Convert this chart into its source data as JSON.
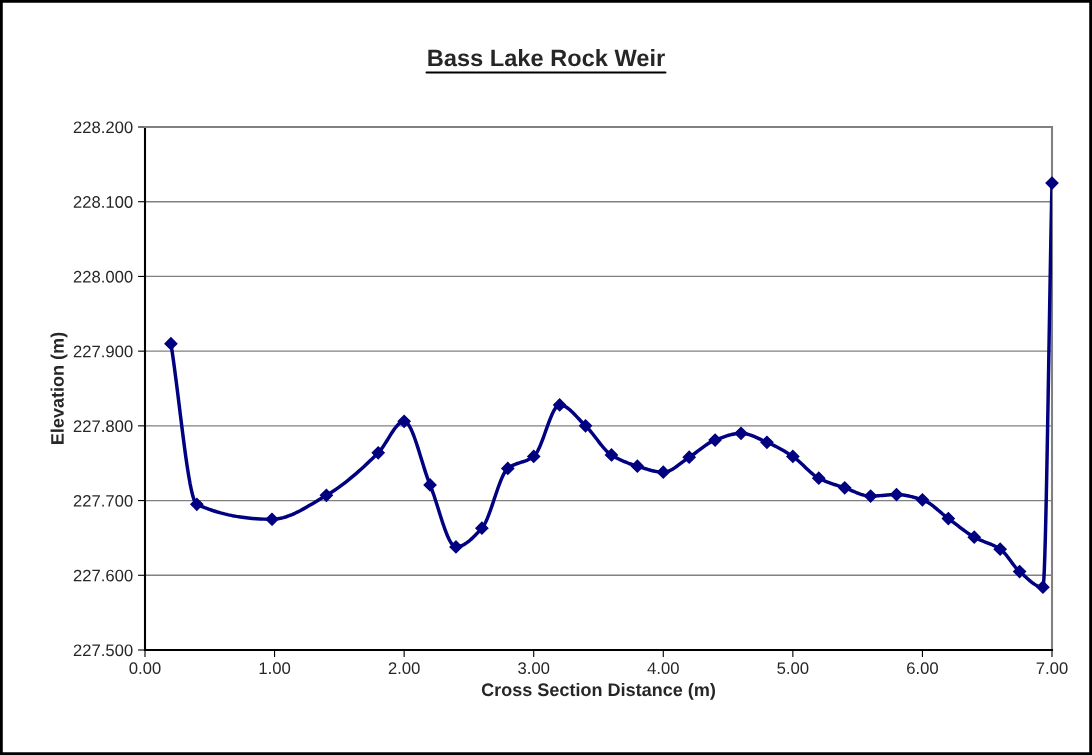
{
  "chart_data": {
    "type": "line",
    "title": "Bass Lake Rock Weir",
    "xlabel": "Cross Section Distance (m)",
    "ylabel": "Elevation (m)",
    "x": [
      0.2,
      0.4,
      0.98,
      1.4,
      1.8,
      2.0,
      2.2,
      2.4,
      2.6,
      2.8,
      3.0,
      3.2,
      3.4,
      3.6,
      3.8,
      4.0,
      4.2,
      4.4,
      4.6,
      4.8,
      5.0,
      5.2,
      5.4,
      5.6,
      5.8,
      6.0,
      6.2,
      6.4,
      6.6,
      6.75,
      6.93,
      7.0
    ],
    "series": [
      {
        "color": "#000080",
        "values": [
          227.91,
          227.695,
          227.675,
          227.707,
          227.764,
          227.806,
          227.721,
          227.638,
          227.663,
          227.743,
          227.759,
          227.828,
          227.8,
          227.761,
          227.746,
          227.738,
          227.758,
          227.781,
          227.79,
          227.778,
          227.759,
          227.73,
          227.717,
          227.706,
          227.708,
          227.701,
          227.676,
          227.651,
          227.635,
          227.605,
          227.584,
          228.125
        ]
      }
    ],
    "xlim": [
      0,
      7.0
    ],
    "xticks": [
      {
        "value": 0,
        "label": "0.00"
      },
      {
        "value": 1,
        "label": "1.00"
      },
      {
        "value": 2,
        "label": "2.00"
      },
      {
        "value": 3,
        "label": "3.00"
      },
      {
        "value": 4,
        "label": "4.00"
      },
      {
        "value": 5,
        "label": "5.00"
      },
      {
        "value": 6,
        "label": "6.00"
      },
      {
        "value": 7,
        "label": "7.00"
      }
    ],
    "ylim": [
      227.5,
      228.2
    ],
    "yticks": [
      {
        "value": 227.5,
        "label": "227.500"
      },
      {
        "value": 227.6,
        "label": "227.600"
      },
      {
        "value": 227.7,
        "label": "227.700"
      },
      {
        "value": 227.8,
        "label": "227.800"
      },
      {
        "value": 227.9,
        "label": "227.900"
      },
      {
        "value": 228.0,
        "label": "228.000"
      },
      {
        "value": 228.1,
        "label": "228.100"
      },
      {
        "value": 228.2,
        "label": "228.200"
      }
    ],
    "grid": "y",
    "legend": false,
    "marker": "diamond",
    "line_style": "solid"
  }
}
